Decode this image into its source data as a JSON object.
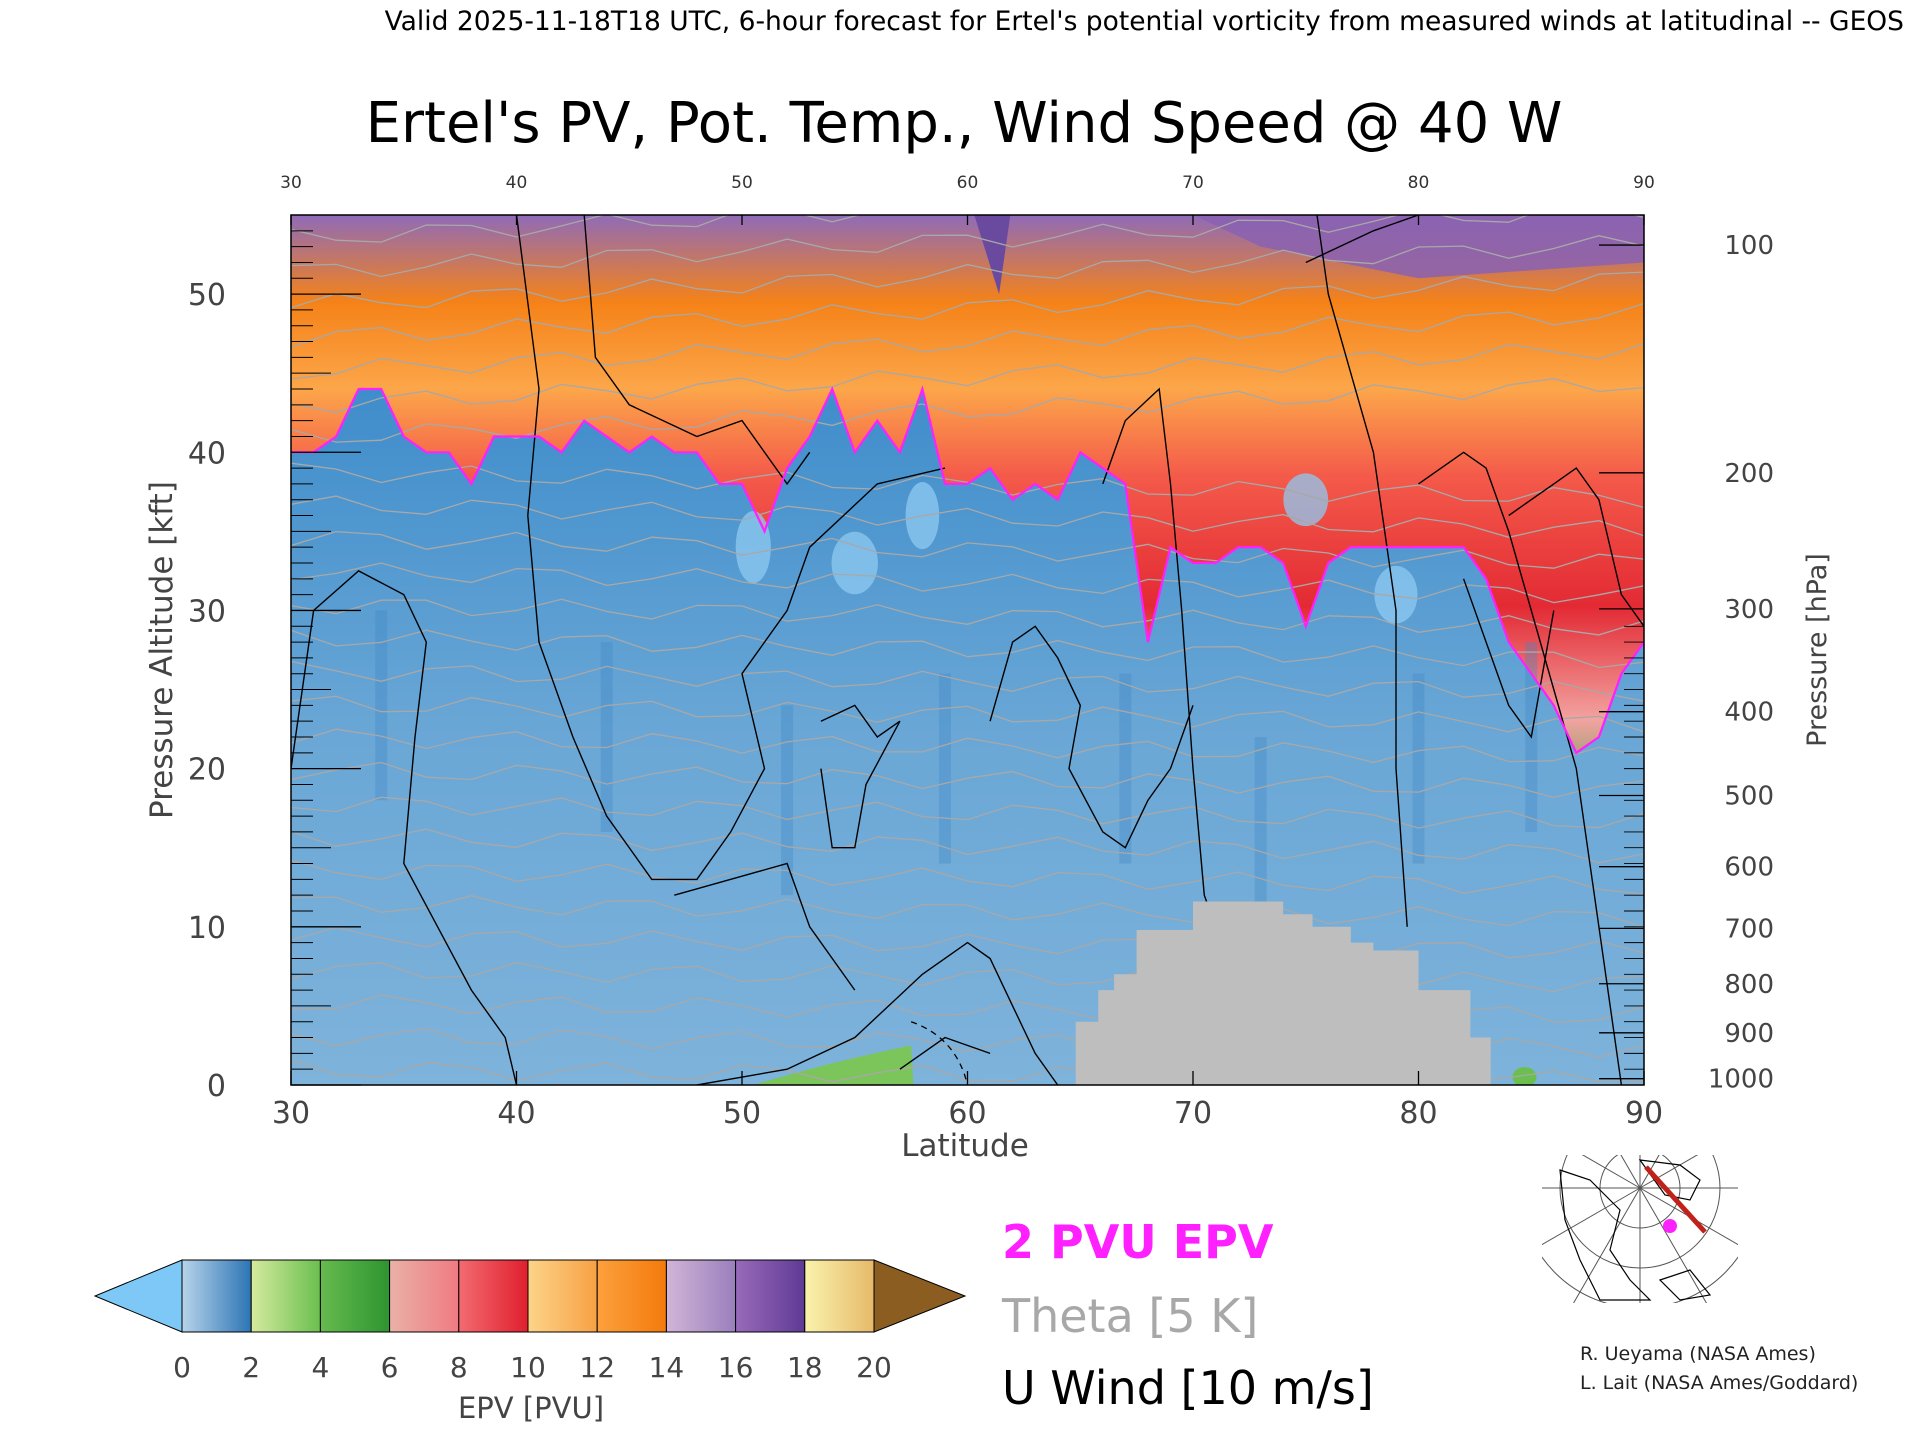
{
  "header": "Valid 2025-11-18T18 UTC, 6-hour forecast for Ertel's potential vorticity from measured winds at latitudinal -- GEOS",
  "colors": {
    "pv_contour": "#ff20ff",
    "theta_contour": "#a8a8a8",
    "wind_contour": "#000000",
    "topography": "#bebebe",
    "route": "#c0221b",
    "location_dot": "#ff20ff"
  },
  "chart_data": {
    "type": "heatmap",
    "title": "Ertel's PV, Pot. Temp., Wind Speed @ 40 W",
    "xlabel": "Latitude",
    "ylabel": "Pressure Altitude [kft]",
    "ylabel_right": "Pressure [hPa]",
    "xlim": [
      30,
      90
    ],
    "ylim": [
      0,
      55
    ],
    "x_ticks": [
      "30",
      "40",
      "50",
      "60",
      "70",
      "80",
      "90"
    ],
    "y_ticks": [
      "0",
      "10",
      "20",
      "30",
      "40",
      "50"
    ],
    "pressure_ticks": [
      {
        "label": "1000",
        "kft": 0.4
      },
      {
        "label": "900",
        "kft": 3.3
      },
      {
        "label": "800",
        "kft": 6.4
      },
      {
        "label": "700",
        "kft": 9.9
      },
      {
        "label": "600",
        "kft": 13.8
      },
      {
        "label": "500",
        "kft": 18.3
      },
      {
        "label": "400",
        "kft": 23.6
      },
      {
        "label": "300",
        "kft": 30.1
      },
      {
        "label": "200",
        "kft": 38.7
      },
      {
        "label": "100",
        "kft": 53.1
      }
    ],
    "tropopause_2pvu": [
      [
        30,
        40
      ],
      [
        31,
        40
      ],
      [
        32,
        41
      ],
      [
        33,
        44
      ],
      [
        34,
        44
      ],
      [
        35,
        41
      ],
      [
        36,
        40
      ],
      [
        37,
        40
      ],
      [
        38,
        38
      ],
      [
        39,
        41
      ],
      [
        40,
        41
      ],
      [
        41,
        41
      ],
      [
        42,
        40
      ],
      [
        43,
        42
      ],
      [
        44,
        41
      ],
      [
        45,
        40
      ],
      [
        46,
        41
      ],
      [
        47,
        40
      ],
      [
        48,
        40
      ],
      [
        49,
        38
      ],
      [
        50,
        38
      ],
      [
        51,
        35
      ],
      [
        52,
        39
      ],
      [
        53,
        41
      ],
      [
        54,
        44
      ],
      [
        55,
        40
      ],
      [
        56,
        42
      ],
      [
        57,
        40
      ],
      [
        58,
        44
      ],
      [
        59,
        38
      ],
      [
        60,
        38
      ],
      [
        61,
        39
      ],
      [
        62,
        37
      ],
      [
        63,
        38
      ],
      [
        64,
        37
      ],
      [
        65,
        40
      ],
      [
        66,
        39
      ],
      [
        67,
        38
      ],
      [
        68,
        28
      ],
      [
        69,
        34
      ],
      [
        70,
        33
      ],
      [
        71,
        33
      ],
      [
        72,
        34
      ],
      [
        73,
        34
      ],
      [
        74,
        33
      ],
      [
        75,
        29
      ],
      [
        76,
        33
      ],
      [
        77,
        34
      ],
      [
        78,
        34
      ],
      [
        79,
        34
      ],
      [
        80,
        34
      ],
      [
        81,
        34
      ],
      [
        82,
        34
      ],
      [
        83,
        32
      ],
      [
        84,
        28
      ],
      [
        85,
        26
      ],
      [
        86,
        24
      ],
      [
        87,
        21
      ],
      [
        88,
        22
      ],
      [
        89,
        26
      ],
      [
        90,
        28
      ]
    ],
    "colorbar": {
      "label": "EPV [PVU]",
      "ticks": [
        "0",
        "2",
        "4",
        "6",
        "8",
        "10",
        "12",
        "14",
        "16",
        "18",
        "20"
      ],
      "levels": [
        {
          "from": 0,
          "to": 2,
          "colors": [
            "#b7d4ea",
            "#2c74b5"
          ]
        },
        {
          "from": 2,
          "to": 4,
          "colors": [
            "#d5ea9e",
            "#6abf4f"
          ]
        },
        {
          "from": 4,
          "to": 6,
          "colors": [
            "#66bb4f",
            "#2e9430"
          ]
        },
        {
          "from": 6,
          "to": 8,
          "colors": [
            "#e9b1a7",
            "#f07a82"
          ]
        },
        {
          "from": 8,
          "to": 10,
          "colors": [
            "#f36b70",
            "#e01f2e"
          ]
        },
        {
          "from": 10,
          "to": 12,
          "colors": [
            "#fdd48a",
            "#f7a143"
          ]
        },
        {
          "from": 12,
          "to": 14,
          "colors": [
            "#fca03d",
            "#f47a0c"
          ]
        },
        {
          "from": 14,
          "to": 16,
          "colors": [
            "#d1b5d8",
            "#9a7fbd"
          ]
        },
        {
          "from": 16,
          "to": 18,
          "colors": [
            "#9a6ab9",
            "#5e3a96"
          ]
        },
        {
          "from": 18,
          "to": 20,
          "colors": [
            "#faf3ac",
            "#e6b96a"
          ]
        }
      ],
      "under_color": "#7ec8f8",
      "over_color": "#8b5d20"
    }
  },
  "legend": {
    "pv": "2 PVU EPV",
    "theta": "Theta [5 K]",
    "wind": "U Wind [10 m/s]"
  },
  "credits": {
    "line1": "R. Ueyama (NASA Ames)",
    "line2": "L. Lait (NASA Ames/Goddard)"
  }
}
